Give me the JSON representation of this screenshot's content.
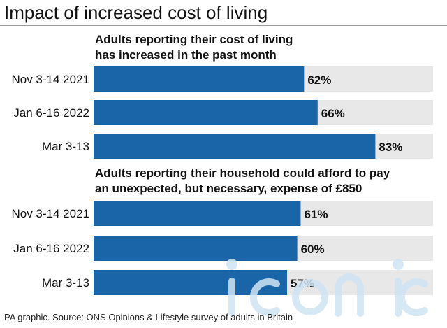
{
  "title": "Impact of increased cost of living",
  "footer": "PA graphic. Source: ONS Opinions & Lifestyle survey of adults in Britain",
  "colors": {
    "bar": "#1a65a8",
    "track": "#e8e8e8",
    "text": "#111111",
    "watermark": "#cfe4f3"
  },
  "chart_data": [
    {
      "type": "bar",
      "orientation": "horizontal",
      "title_lines": [
        "Adults reporting their cost of living",
        "has increased in the past month"
      ],
      "categories": [
        "Nov 3-14 2021",
        "Jan 6-16 2022",
        "Mar 3-13"
      ],
      "values": [
        62,
        66,
        83
      ],
      "value_labels": [
        "62%",
        "66%",
        "83%"
      ],
      "unit": "%",
      "xlim": [
        0,
        100
      ],
      "grid": false,
      "legend": false
    },
    {
      "type": "bar",
      "orientation": "horizontal",
      "title_lines": [
        "Adults reporting their household could afford to pay",
        "an unexpected, but necessary, expense of £850"
      ],
      "categories": [
        "Nov 3-14 2021",
        "Jan 6-16 2022",
        "Mar 3-13"
      ],
      "values": [
        61,
        60,
        57
      ],
      "value_labels": [
        "61%",
        "60%",
        "57%"
      ],
      "unit": "%",
      "xlim": [
        0,
        100
      ],
      "grid": false,
      "legend": false
    }
  ]
}
